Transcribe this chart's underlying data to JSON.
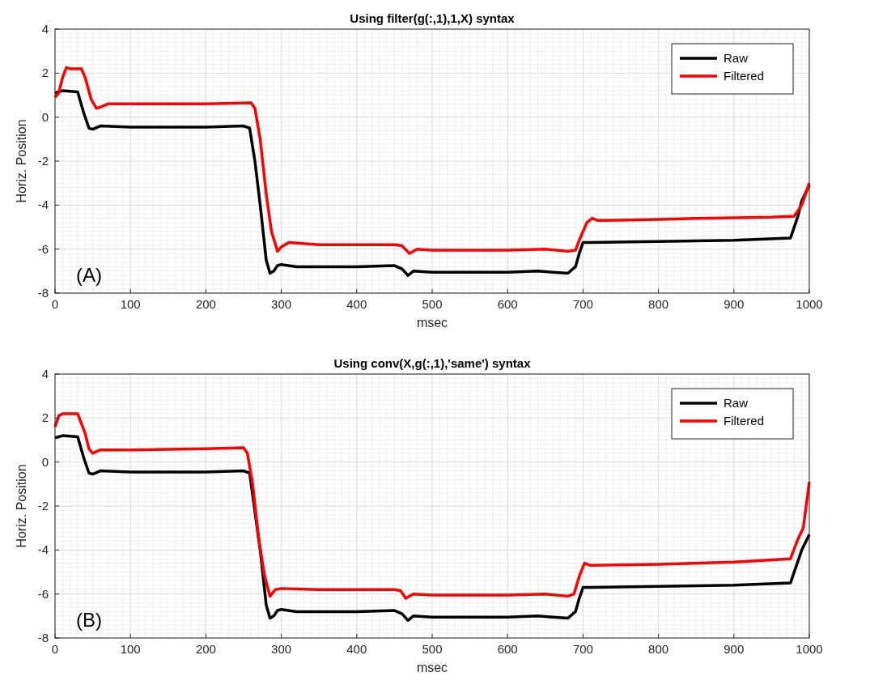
{
  "chart_data": [
    {
      "type": "line",
      "title": "Using filter(g(:,1),1,X) syntax",
      "xlabel": "msec",
      "ylabel": "Horiz. Position",
      "xlim": [
        0,
        1000
      ],
      "ylim": [
        -8,
        4
      ],
      "xticks": [
        0,
        100,
        200,
        300,
        400,
        500,
        600,
        700,
        800,
        900,
        1000
      ],
      "yticks": [
        -8,
        -6,
        -4,
        -2,
        0,
        2,
        4
      ],
      "grid": true,
      "legend": "top right",
      "annotations": [
        "(A)"
      ],
      "series": [
        {
          "name": "Raw",
          "color": "#000000",
          "x": [
            0,
            10,
            30,
            38,
            45,
            50,
            60,
            100,
            200,
            250,
            258,
            265,
            272,
            280,
            285,
            290,
            295,
            300,
            320,
            400,
            450,
            460,
            468,
            475,
            500,
            600,
            640,
            660,
            680,
            690,
            695,
            700,
            710,
            800,
            900,
            975,
            985,
            990,
            1000
          ],
          "values": [
            1.1,
            1.2,
            1.15,
            0.2,
            -0.5,
            -0.55,
            -0.4,
            -0.45,
            -0.45,
            -0.4,
            -0.5,
            -2,
            -4,
            -6.5,
            -7.1,
            -7.0,
            -6.75,
            -6.7,
            -6.8,
            -6.8,
            -6.75,
            -6.9,
            -7.2,
            -7.0,
            -7.05,
            -7.05,
            -7.0,
            -7.05,
            -7.1,
            -6.8,
            -6.2,
            -5.7,
            -5.7,
            -5.65,
            -5.6,
            -5.5,
            -4.5,
            -3.8,
            -3.1
          ]
        },
        {
          "name": "Filtered",
          "color": "#ff0000",
          "x": [
            0,
            5,
            10,
            15,
            20,
            35,
            40,
            48,
            55,
            60,
            70,
            100,
            200,
            260,
            265,
            272,
            280,
            287,
            295,
            300,
            310,
            350,
            450,
            460,
            470,
            480,
            500,
            600,
            650,
            680,
            690,
            695,
            705,
            712,
            720,
            800,
            850,
            950,
            980,
            990,
            1000
          ],
          "values": [
            0.9,
            1.1,
            1.8,
            2.25,
            2.2,
            2.2,
            1.8,
            0.8,
            0.4,
            0.45,
            0.6,
            0.6,
            0.6,
            0.65,
            0.4,
            -1,
            -3.5,
            -5.2,
            -6.1,
            -5.9,
            -5.7,
            -5.8,
            -5.8,
            -5.85,
            -6.2,
            -6.0,
            -6.05,
            -6.05,
            -6.0,
            -6.1,
            -6.05,
            -5.6,
            -4.8,
            -4.6,
            -4.7,
            -4.65,
            -4.6,
            -4.55,
            -4.5,
            -4.0,
            -3.0
          ]
        }
      ]
    },
    {
      "type": "line",
      "title": "Using conv(X,g(:,1),'same') syntax",
      "xlabel": "msec",
      "ylabel": "Horiz. Position",
      "xlim": [
        0,
        1000
      ],
      "ylim": [
        -8,
        4
      ],
      "xticks": [
        0,
        100,
        200,
        300,
        400,
        500,
        600,
        700,
        800,
        900,
        1000
      ],
      "yticks": [
        -8,
        -6,
        -4,
        -2,
        0,
        2,
        4
      ],
      "grid": true,
      "legend": "top right",
      "annotations": [
        "(B)"
      ],
      "series": [
        {
          "name": "Raw",
          "color": "#000000",
          "x": [
            0,
            10,
            30,
            38,
            45,
            50,
            60,
            100,
            200,
            250,
            258,
            272,
            280,
            285,
            290,
            295,
            300,
            320,
            400,
            450,
            460,
            468,
            475,
            500,
            600,
            640,
            660,
            680,
            690,
            695,
            700,
            710,
            800,
            900,
            975,
            985,
            990,
            1000
          ],
          "values": [
            1.1,
            1.2,
            1.15,
            0.2,
            -0.5,
            -0.55,
            -0.4,
            -0.45,
            -0.45,
            -0.4,
            -0.5,
            -4,
            -6.5,
            -7.1,
            -7.0,
            -6.75,
            -6.7,
            -6.8,
            -6.8,
            -6.75,
            -6.9,
            -7.2,
            -7.0,
            -7.05,
            -7.05,
            -7.0,
            -7.05,
            -7.1,
            -6.8,
            -6.2,
            -5.7,
            -5.7,
            -5.65,
            -5.6,
            -5.5,
            -4.5,
            -4.0,
            -3.3
          ]
        },
        {
          "name": "Filtered",
          "color": "#ff0000",
          "x": [
            0,
            5,
            10,
            30,
            40,
            45,
            50,
            60,
            100,
            200,
            250,
            255,
            262,
            270,
            278,
            285,
            292,
            300,
            350,
            450,
            458,
            465,
            475,
            500,
            600,
            650,
            680,
            688,
            695,
            702,
            710,
            800,
            900,
            975,
            985,
            992,
            1000
          ],
          "values": [
            1.6,
            2.1,
            2.2,
            2.2,
            1.3,
            0.6,
            0.4,
            0.55,
            0.55,
            0.6,
            0.65,
            0.4,
            -1,
            -3.5,
            -5.2,
            -6.1,
            -5.8,
            -5.75,
            -5.8,
            -5.8,
            -5.85,
            -6.2,
            -6.0,
            -6.05,
            -6.05,
            -6.0,
            -6.1,
            -6.0,
            -5.2,
            -4.6,
            -4.7,
            -4.65,
            -4.55,
            -4.4,
            -3.5,
            -3.0,
            -0.9
          ]
        }
      ]
    }
  ]
}
